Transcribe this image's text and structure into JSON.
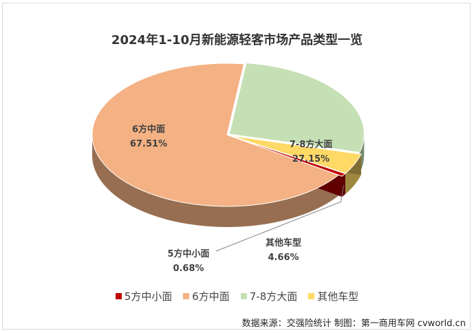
{
  "title": "2024年1-10月新能源轻客市场产品类型一览",
  "chart_data": {
    "type": "pie",
    "style": "3d-exploded",
    "categories": [
      "5方中小面",
      "6方中面",
      "7-8方大面",
      "其他车型"
    ],
    "values": [
      0.68,
      67.51,
      27.15,
      4.66
    ],
    "value_labels": [
      "0.68%",
      "67.51%",
      "27.15%",
      "4.66%"
    ],
    "colors": [
      "#c00000",
      "#f4b183",
      "#c5e0b4",
      "#ffd966"
    ],
    "legend_position": "bottom"
  },
  "source": "数据来源：交强险统计  制图：第一商用车网 cvworld.cn"
}
